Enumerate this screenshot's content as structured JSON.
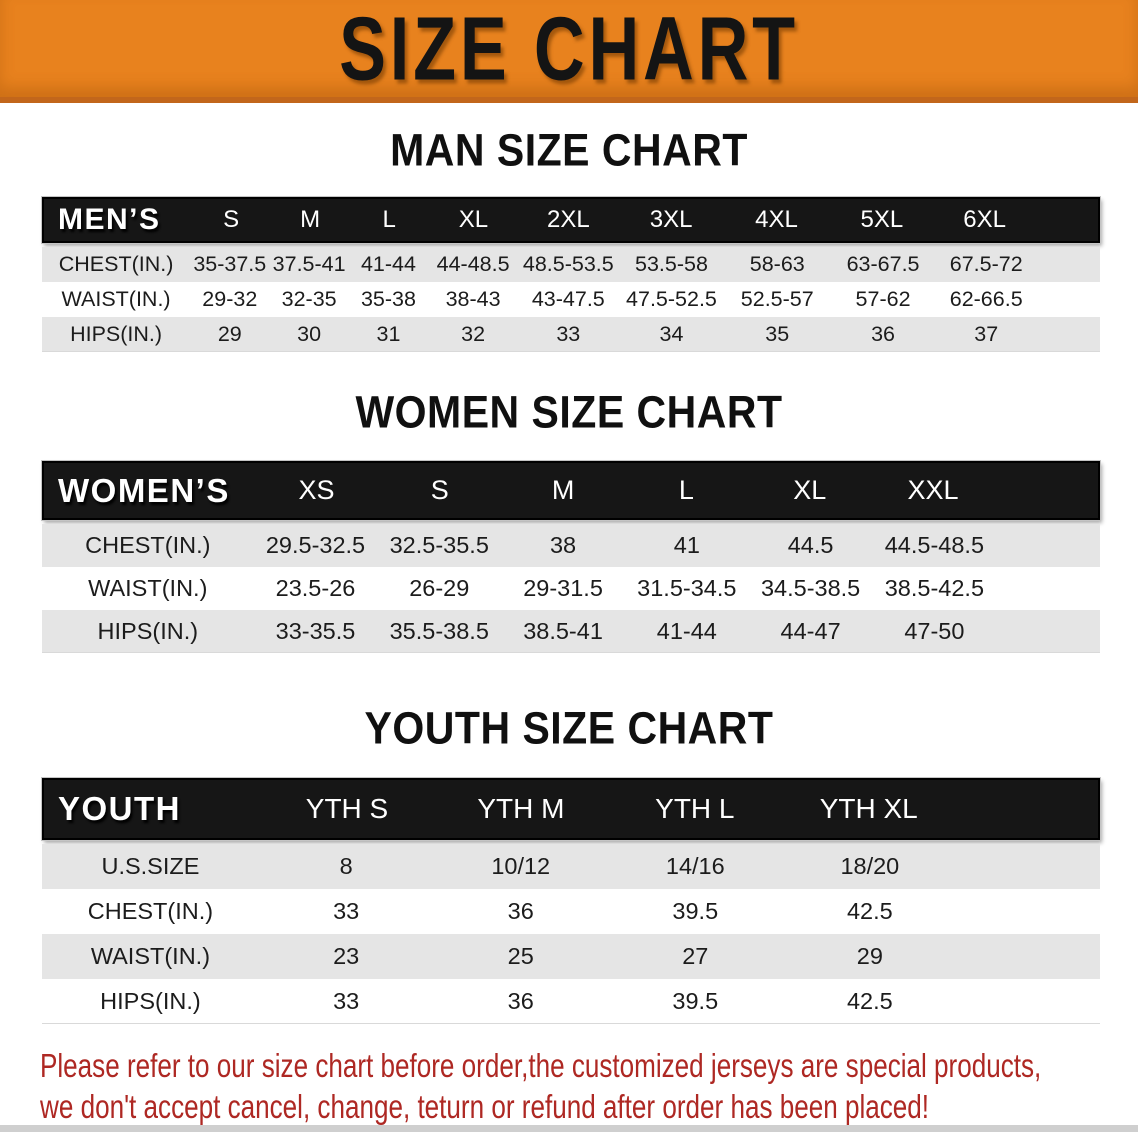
{
  "banner": {
    "title": "SIZE CHART"
  },
  "colors": {
    "banner_orange": "#E8821E",
    "banner_edge": "#C2661B",
    "header_black": "#161616",
    "row_gray": "#E5E5E5",
    "row_white": "#FFFFFF",
    "disclaimer_red": "#AE2823"
  },
  "sections": {
    "men": {
      "heading": "MAN SIZE CHART",
      "table": {
        "label": "MEN’S",
        "columns": [
          "S",
          "M",
          "L",
          "XL",
          "2XL",
          "3XL",
          "4XL",
          "5XL",
          "6XL"
        ],
        "rows": [
          {
            "label": "CHEST(IN.)",
            "values": [
              "35-37.5",
              "37.5-41",
              "41-44",
              "44-48.5",
              "48.5-53.5",
              "53.5-58",
              "58-63",
              "63-67.5",
              "67.5-72"
            ]
          },
          {
            "label": "WAIST(IN.)",
            "values": [
              "29-32",
              "32-35",
              "35-38",
              "38-43",
              "43-47.5",
              "47.5-52.5",
              "52.5-57",
              "57-62",
              "62-66.5"
            ]
          },
          {
            "label": "HIPS(IN.)",
            "values": [
              "29",
              "30",
              "31",
              "32",
              "33",
              "34",
              "35",
              "36",
              "37"
            ]
          }
        ]
      }
    },
    "women": {
      "heading": "WOMEN SIZE CHART",
      "table": {
        "label": "WOMEN’S",
        "columns": [
          "XS",
          "S",
          "M",
          "L",
          "XL",
          "XXL"
        ],
        "rows": [
          {
            "label": "CHEST(IN.)",
            "values": [
              "29.5-32.5",
              "32.5-35.5",
              "38",
              "41",
              "44.5",
              "44.5-48.5"
            ]
          },
          {
            "label": "WAIST(IN.)",
            "values": [
              "23.5-26",
              "26-29",
              "29-31.5",
              "31.5-34.5",
              "34.5-38.5",
              "38.5-42.5"
            ]
          },
          {
            "label": "HIPS(IN.)",
            "values": [
              "33-35.5",
              "35.5-38.5",
              "38.5-41",
              "41-44",
              "44-47",
              "47-50"
            ]
          }
        ]
      }
    },
    "youth": {
      "heading": "YOUTH SIZE CHART",
      "table": {
        "label": "YOUTH",
        "columns": [
          "YTH S",
          "YTH M",
          "YTH L",
          "YTH XL"
        ],
        "rows": [
          {
            "label": "U.S.SIZE",
            "values": [
              "8",
              "10/12",
              "14/16",
              "18/20"
            ]
          },
          {
            "label": "CHEST(IN.)",
            "values": [
              "33",
              "36",
              "39.5",
              "42.5"
            ]
          },
          {
            "label": "WAIST(IN.)",
            "values": [
              "23",
              "25",
              "27",
              "29"
            ]
          },
          {
            "label": "HIPS(IN.)",
            "values": [
              "33",
              "36",
              "39.5",
              "42.5"
            ]
          }
        ]
      }
    }
  },
  "disclaimer": {
    "line1": "Please refer to our size chart before order,the customized jerseys are special products,",
    "line2": "we don't accept cancel, change, teturn or refund after order has been placed!"
  }
}
